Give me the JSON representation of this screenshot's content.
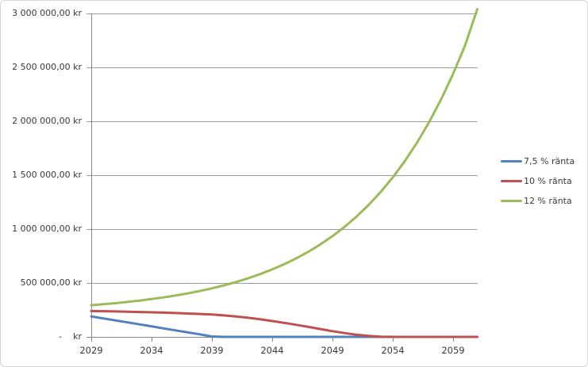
{
  "colors": {
    "background": "#ffffff",
    "chart_border": "#d6d6d6",
    "gridline": "#9a9a9a",
    "axis": "#868686",
    "text": "#3a3a3a"
  },
  "chart_data": {
    "type": "line",
    "title": "",
    "xlabel": "",
    "ylabel": "",
    "grid": true,
    "legend_position": "right",
    "currency": "kr",
    "ylim": [
      0,
      3000000
    ],
    "xlim": [
      2029,
      2061
    ],
    "x": [
      2029,
      2030,
      2031,
      2032,
      2033,
      2034,
      2035,
      2036,
      2037,
      2038,
      2039,
      2040,
      2041,
      2042,
      2043,
      2044,
      2045,
      2046,
      2047,
      2048,
      2049,
      2050,
      2051,
      2052,
      2053,
      2054,
      2055,
      2056,
      2057,
      2058,
      2059,
      2060,
      2061
    ],
    "series": [
      {
        "name": "7,5 % ränta",
        "color": "#4F81BD",
        "values": [
          190000,
          171500,
          153000,
          134500,
          116000,
          97500,
          79000,
          60500,
          42000,
          23500,
          4000,
          0,
          0,
          0,
          0,
          0,
          0,
          0,
          0,
          0,
          0,
          0,
          0,
          0,
          0,
          0,
          0,
          0,
          0,
          0,
          0,
          0,
          0
        ]
      },
      {
        "name": "10 % ränta",
        "color": "#C0504D",
        "values": [
          240000,
          238200,
          236100,
          233800,
          231200,
          228300,
          225000,
          221300,
          217200,
          212600,
          207500,
          199000,
          189000,
          177000,
          163000,
          147000,
          130000,
          112000,
          93000,
          73000,
          53000,
          35000,
          20000,
          9000,
          2500,
          0,
          0,
          0,
          0,
          0,
          0,
          0,
          0
        ]
      },
      {
        "name": "12 % ränta",
        "color": "#9BBB59",
        "values": [
          294000,
          302900,
          312800,
          323900,
          336400,
          350400,
          366100,
          383700,
          403400,
          425400,
          450100,
          477700,
          508600,
          543300,
          582100,
          625600,
          674300,
          728800,
          789800,
          858200,
          934800,
          1020500,
          1116600,
          1224200,
          1344700,
          1479600,
          1630800,
          1800100,
          1989700,
          2202000,
          2439800,
          2706200,
          3040000
        ]
      }
    ],
    "y_ticks": [
      {
        "value": 0,
        "label": "-    kr"
      },
      {
        "value": 500000,
        "label": "500 000,00 kr"
      },
      {
        "value": 1000000,
        "label": "1 000 000,00 kr"
      },
      {
        "value": 1500000,
        "label": "1 500 000,00 kr"
      },
      {
        "value": 2000000,
        "label": "2 000 000,00 kr"
      },
      {
        "value": 2500000,
        "label": "2 500 000,00 kr"
      },
      {
        "value": 3000000,
        "label": "3 000 000,00 kr"
      }
    ],
    "x_ticks": [
      2029,
      2034,
      2039,
      2044,
      2049,
      2054,
      2059
    ]
  }
}
